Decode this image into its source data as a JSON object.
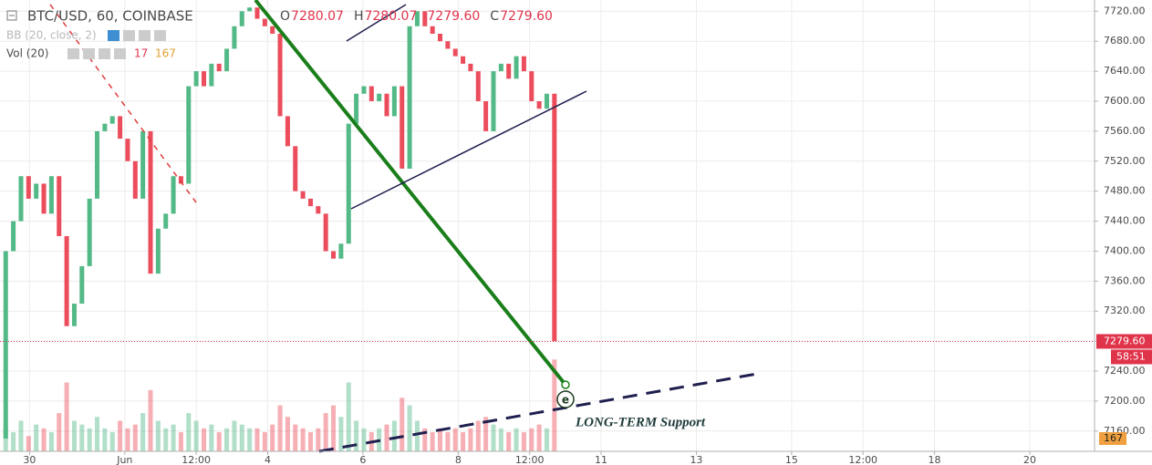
{
  "chart_data": {
    "type": "candlestick",
    "title": "BTC/USD, 60, COINBASE",
    "ohlc_header": [
      {
        "label": "O",
        "value": "7280.07"
      },
      {
        "label": "H",
        "value": "7280.07"
      },
      {
        "value": "7279.60"
      },
      {
        "label": "C",
        "value": "7279.60"
      }
    ],
    "bb_label": "BB (20, close, 2)",
    "vol_label": "Vol (20)",
    "vol_legend": [
      17,
      167
    ],
    "up_color": "#53b987",
    "down_color": "#eb4d5c",
    "x": [
      -1.5,
      -1.34,
      -1.18,
      -1.02,
      -0.86,
      -0.7,
      -0.54,
      -0.38,
      -0.22,
      -0.06,
      0.1,
      0.26,
      0.42,
      0.58,
      0.74,
      0.9,
      1.06,
      1.22,
      1.38,
      1.54,
      1.7,
      1.86,
      2.02,
      2.18,
      2.34,
      2.5,
      2.66,
      2.82,
      2.98,
      3.14,
      3.3,
      3.46,
      3.62,
      3.78,
      3.94,
      4.1,
      4.26,
      4.42,
      4.58,
      4.74,
      4.9,
      5.06,
      5.22,
      5.38,
      5.54,
      5.7,
      5.86,
      6.02,
      6.18,
      6.34,
      6.5,
      6.66,
      6.82,
      6.98,
      7.14,
      7.3,
      7.46,
      7.62,
      7.78,
      7.94,
      8.1,
      8.26,
      8.42,
      8.58,
      8.74,
      8.9,
      9.06,
      9.22,
      9.38,
      9.54,
      9.7,
      9.86,
      10.02
    ],
    "open": [
      7150,
      7400,
      7440,
      7500,
      7470,
      7490,
      7450,
      7500,
      7420,
      7300,
      7330,
      7380,
      7470,
      7560,
      7570,
      7580,
      7550,
      7520,
      7470,
      7560,
      7370,
      7430,
      7450,
      7500,
      7490,
      7620,
      7640,
      7620,
      7650,
      7640,
      7670,
      7700,
      7720,
      7725,
      7710,
      7700,
      7690,
      7580,
      7540,
      7480,
      7470,
      7460,
      7450,
      7400,
      7390,
      7410,
      7570,
      7610,
      7620,
      7600,
      7610,
      7580,
      7620,
      7510,
      7700,
      7720,
      7700,
      7690,
      7680,
      7670,
      7660,
      7650,
      7640,
      7600,
      7560,
      7640,
      7650,
      7630,
      7660,
      7640,
      7600,
      7590,
      7610
    ],
    "close": [
      7400,
      7440,
      7500,
      7470,
      7490,
      7450,
      7500,
      7420,
      7300,
      7330,
      7380,
      7470,
      7560,
      7570,
      7580,
      7550,
      7520,
      7470,
      7560,
      7370,
      7430,
      7450,
      7500,
      7490,
      7620,
      7640,
      7620,
      7650,
      7640,
      7670,
      7700,
      7720,
      7725,
      7710,
      7700,
      7690,
      7580,
      7540,
      7480,
      7470,
      7460,
      7450,
      7400,
      7390,
      7410,
      7570,
      7610,
      7620,
      7600,
      7610,
      7580,
      7620,
      7510,
      7700,
      7720,
      7700,
      7690,
      7680,
      7670,
      7660,
      7650,
      7640,
      7600,
      7560,
      7640,
      7650,
      7630,
      7660,
      7640,
      7600,
      7590,
      7610,
      7280
    ],
    "volume": [
      300,
      250,
      400,
      200,
      350,
      300,
      250,
      500,
      900,
      400,
      350,
      300,
      450,
      300,
      250,
      400,
      300,
      350,
      500,
      800,
      400,
      300,
      350,
      250,
      500,
      400,
      300,
      350,
      250,
      300,
      400,
      350,
      300,
      300,
      250,
      350,
      600,
      450,
      350,
      300,
      250,
      300,
      500,
      600,
      450,
      900,
      400,
      300,
      250,
      300,
      350,
      400,
      700,
      600,
      400,
      300,
      250,
      300,
      250,
      300,
      250,
      300,
      400,
      450,
      350,
      300,
      250,
      300,
      250,
      300,
      350,
      300,
      1200
    ],
    "vlim": [
      0,
      5900
    ],
    "vol_axis_label": 167,
    "xlim": [
      -1.62,
      21.36
    ],
    "ylim": [
      7133,
      7735
    ],
    "xticks": [
      {
        "value": -1,
        "label": "30"
      },
      {
        "value": 1,
        "label": "Jun"
      },
      {
        "value": 2.5,
        "label": "12:00"
      },
      4,
      6,
      8,
      {
        "value": 9.5,
        "label": "12:00"
      },
      11,
      13,
      15,
      {
        "value": 16.5,
        "label": "12:00"
      },
      18,
      20
    ],
    "yticks": [
      {
        "value": 7160,
        "label": "7160.00"
      },
      {
        "value": 7200,
        "label": "7200.00"
      },
      {
        "value": 7240,
        "label": "7240.00"
      },
      {
        "value": 7280,
        "label": "7280.00"
      },
      {
        "value": 7320,
        "label": "7320.00"
      },
      {
        "value": 7360,
        "label": "7360.00"
      },
      {
        "value": 7400,
        "label": "7400.00"
      },
      {
        "value": 7440,
        "label": "7440.00"
      },
      {
        "value": 7480,
        "label": "7480.00"
      },
      {
        "value": 7520,
        "label": "7520.00"
      },
      {
        "value": 7560,
        "label": "7560.00"
      },
      {
        "value": 7600,
        "label": "7600.00"
      },
      {
        "value": 7640,
        "label": "7640.00"
      },
      {
        "value": 7680,
        "label": "7680.00"
      },
      {
        "value": 7720,
        "label": "7720.00"
      }
    ],
    "price_line": {
      "value": 7279.6,
      "label": "7279.60"
    },
    "countdown": "58:51",
    "annotation": "LONG-TERM Support",
    "marker": "e"
  }
}
